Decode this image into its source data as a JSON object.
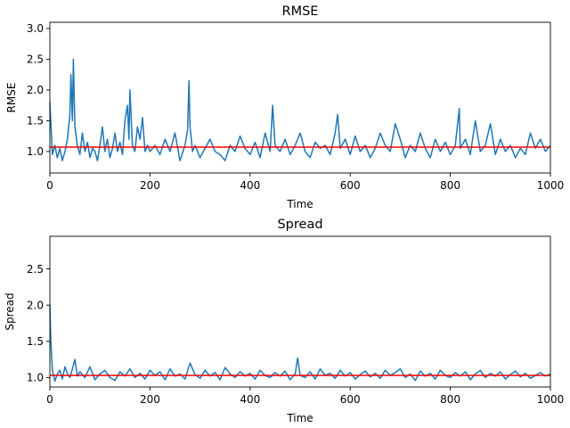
{
  "chart_data": [
    {
      "type": "line",
      "title": "RMSE",
      "xlabel": "Time",
      "ylabel": "RMSE",
      "xlim": [
        0,
        1000
      ],
      "ylim": [
        0.65,
        3.1
      ],
      "xticks": [
        0,
        200,
        400,
        600,
        800,
        1000
      ],
      "yticks": [
        1.0,
        1.5,
        2.0,
        2.5,
        3.0
      ],
      "xtick_labels": [
        "0",
        "200",
        "400",
        "600",
        "800",
        "1000"
      ],
      "ytick_labels": [
        "1.0",
        "1.5",
        "2.0",
        "2.5",
        "3.0"
      ],
      "grid": false,
      "series": [
        {
          "color": "#1f77b4",
          "x": [
            0,
            5,
            10,
            15,
            20,
            25,
            30,
            35,
            40,
            42,
            45,
            47,
            50,
            55,
            60,
            65,
            70,
            75,
            80,
            85,
            90,
            95,
            100,
            105,
            110,
            115,
            120,
            125,
            130,
            135,
            140,
            145,
            150,
            155,
            158,
            160,
            165,
            170,
            175,
            180,
            185,
            190,
            195,
            200,
            210,
            220,
            230,
            240,
            250,
            260,
            270,
            275,
            278,
            280,
            285,
            290,
            300,
            310,
            320,
            330,
            340,
            350,
            360,
            370,
            380,
            390,
            400,
            410,
            420,
            430,
            440,
            445,
            450,
            460,
            470,
            480,
            490,
            500,
            510,
            520,
            530,
            540,
            550,
            560,
            570,
            575,
            580,
            590,
            600,
            610,
            620,
            630,
            640,
            650,
            660,
            670,
            680,
            690,
            700,
            710,
            720,
            730,
            740,
            750,
            760,
            770,
            780,
            790,
            800,
            810,
            818,
            820,
            830,
            840,
            850,
            860,
            870,
            880,
            890,
            900,
            910,
            920,
            930,
            940,
            950,
            960,
            970,
            980,
            990,
            1000
          ],
          "y": [
            1.8,
            0.95,
            1.1,
            0.9,
            1.05,
            0.85,
            1.0,
            1.2,
            1.6,
            2.25,
            1.5,
            2.5,
            1.4,
            1.1,
            0.95,
            1.3,
            1.0,
            1.15,
            0.9,
            1.05,
            1.0,
            0.85,
            1.1,
            1.4,
            1.0,
            1.2,
            0.9,
            1.05,
            1.3,
            1.0,
            1.15,
            0.95,
            1.5,
            1.75,
            1.2,
            2.0,
            1.1,
            1.0,
            1.4,
            1.2,
            1.55,
            1.0,
            1.1,
            1.0,
            1.1,
            0.95,
            1.2,
            1.0,
            1.3,
            0.85,
            1.1,
            1.35,
            2.15,
            1.4,
            1.0,
            1.1,
            0.9,
            1.05,
            1.2,
            1.0,
            0.95,
            0.85,
            1.1,
            1.0,
            1.25,
            1.05,
            0.95,
            1.15,
            0.9,
            1.3,
            1.0,
            1.75,
            1.1,
            1.0,
            1.2,
            0.95,
            1.1,
            1.3,
            1.0,
            0.9,
            1.15,
            1.05,
            1.1,
            0.95,
            1.3,
            1.6,
            1.05,
            1.2,
            0.95,
            1.25,
            1.0,
            1.1,
            0.9,
            1.05,
            1.3,
            1.1,
            1.0,
            1.45,
            1.2,
            0.9,
            1.1,
            1.0,
            1.3,
            1.05,
            0.9,
            1.2,
            1.0,
            1.15,
            0.95,
            1.1,
            1.7,
            1.05,
            1.2,
            0.95,
            1.5,
            1.0,
            1.1,
            1.45,
            0.95,
            1.2,
            1.0,
            1.1,
            0.9,
            1.05,
            0.95,
            1.3,
            1.05,
            1.2,
            1.0,
            1.1
          ]
        }
      ],
      "mean_line": {
        "color": "#ff0000",
        "value": 1.07
      }
    },
    {
      "type": "line",
      "title": "Spread",
      "xlabel": "Time",
      "ylabel": "Spread",
      "xlim": [
        0,
        1000
      ],
      "ylim": [
        0.87,
        2.95
      ],
      "xticks": [
        0,
        200,
        400,
        600,
        800,
        1000
      ],
      "yticks": [
        1.0,
        1.5,
        2.0,
        2.5
      ],
      "xtick_labels": [
        "0",
        "200",
        "400",
        "600",
        "800",
        "1000"
      ],
      "ytick_labels": [
        "1.0",
        "1.5",
        "2.0",
        "2.5"
      ],
      "grid": false,
      "series": [
        {
          "color": "#1f77b4",
          "x": [
            0,
            2,
            5,
            10,
            15,
            20,
            25,
            30,
            35,
            40,
            45,
            50,
            55,
            60,
            70,
            80,
            90,
            100,
            110,
            120,
            130,
            140,
            150,
            160,
            170,
            180,
            190,
            200,
            210,
            220,
            230,
            240,
            250,
            260,
            270,
            280,
            290,
            300,
            310,
            320,
            330,
            340,
            350,
            360,
            370,
            380,
            390,
            400,
            410,
            420,
            430,
            440,
            450,
            460,
            470,
            480,
            490,
            495,
            500,
            510,
            520,
            530,
            540,
            550,
            560,
            570,
            580,
            590,
            600,
            610,
            620,
            630,
            640,
            650,
            660,
            670,
            680,
            690,
            700,
            710,
            720,
            730,
            740,
            750,
            760,
            770,
            780,
            790,
            800,
            810,
            820,
            830,
            840,
            850,
            860,
            870,
            880,
            890,
            900,
            910,
            920,
            930,
            940,
            950,
            960,
            970,
            980,
            990,
            1000
          ],
          "y": [
            2.0,
            1.5,
            1.1,
            0.95,
            1.05,
            1.1,
            0.98,
            1.15,
            1.05,
            1.0,
            1.12,
            1.25,
            1.02,
            1.08,
            1.0,
            1.15,
            0.97,
            1.05,
            1.1,
            1.0,
            0.96,
            1.08,
            1.02,
            1.12,
            1.0,
            1.06,
            0.98,
            1.1,
            1.03,
            1.08,
            0.97,
            1.12,
            1.02,
            1.05,
            0.98,
            1.2,
            1.04,
            0.99,
            1.1,
            1.02,
            1.07,
            0.97,
            1.14,
            1.05,
            1.0,
            1.08,
            1.02,
            1.06,
            0.98,
            1.1,
            1.03,
            1.0,
            1.07,
            1.02,
            1.09,
            0.97,
            1.05,
            1.27,
            1.03,
            1.0,
            1.08,
            0.98,
            1.12,
            1.03,
            1.06,
            0.99,
            1.1,
            1.02,
            1.07,
            0.98,
            1.04,
            1.09,
            1.01,
            1.06,
            0.99,
            1.1,
            1.03,
            1.07,
            1.12,
            1.0,
            1.05,
            0.96,
            1.09,
            1.02,
            1.06,
            0.98,
            1.1,
            1.03,
            1.0,
            1.07,
            1.02,
            1.08,
            0.97,
            1.05,
            1.1,
            1.0,
            1.06,
            1.02,
            1.08,
            0.98,
            1.04,
            1.09,
            1.01,
            1.06,
            0.99,
            1.03,
            1.07,
            1.02,
            1.05
          ]
        }
      ],
      "mean_line": {
        "color": "#ff0000",
        "value": 1.03
      }
    }
  ]
}
